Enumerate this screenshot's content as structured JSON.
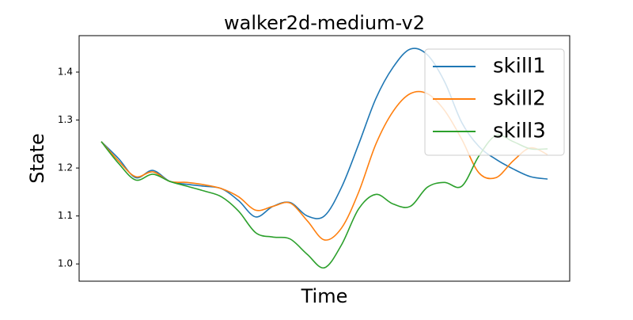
{
  "chart_data": {
    "type": "line",
    "title": "walker2d-medium-v2",
    "xlabel": "Time",
    "ylabel": "State",
    "categories": [
      null,
      null,
      null,
      null,
      null,
      null,
      null,
      null,
      null,
      null,
      null,
      null,
      null,
      null,
      null,
      null,
      null,
      null,
      null,
      null,
      null,
      null,
      null,
      null,
      null,
      null,
      null
    ],
    "series": [
      {
        "name": "skill1",
        "color": "#1f77b4",
        "values": [
          1.255,
          1.22,
          1.18,
          1.195,
          1.172,
          1.166,
          1.162,
          1.157,
          1.132,
          1.098,
          1.12,
          1.128,
          1.1,
          1.1,
          1.16,
          1.25,
          1.345,
          1.41,
          1.448,
          1.436,
          1.38,
          1.295,
          1.245,
          1.218,
          1.198,
          1.182,
          1.177
        ]
      },
      {
        "name": "skill2",
        "color": "#ff7f0e",
        "values": [
          1.255,
          1.215,
          1.182,
          1.192,
          1.172,
          1.17,
          1.165,
          1.157,
          1.14,
          1.112,
          1.12,
          1.127,
          1.09,
          1.05,
          1.075,
          1.15,
          1.25,
          1.318,
          1.355,
          1.355,
          1.32,
          1.26,
          1.19,
          1.18,
          1.215,
          1.242,
          1.228
        ]
      },
      {
        "name": "skill3",
        "color": "#2ca02c",
        "values": [
          1.255,
          1.21,
          1.175,
          1.187,
          1.172,
          1.162,
          1.152,
          1.14,
          1.11,
          1.065,
          1.056,
          1.052,
          1.02,
          0.992,
          1.04,
          1.115,
          1.145,
          1.125,
          1.12,
          1.16,
          1.17,
          1.162,
          1.225,
          1.268,
          1.255,
          1.24,
          1.24
        ]
      }
    ],
    "ylim": [
      0.964,
      1.476
    ],
    "yticks": [
      {
        "value": 1.0,
        "label": "1.0"
      },
      1.1,
      1.2,
      1.3,
      1.4
    ],
    "legend": "upper right"
  }
}
